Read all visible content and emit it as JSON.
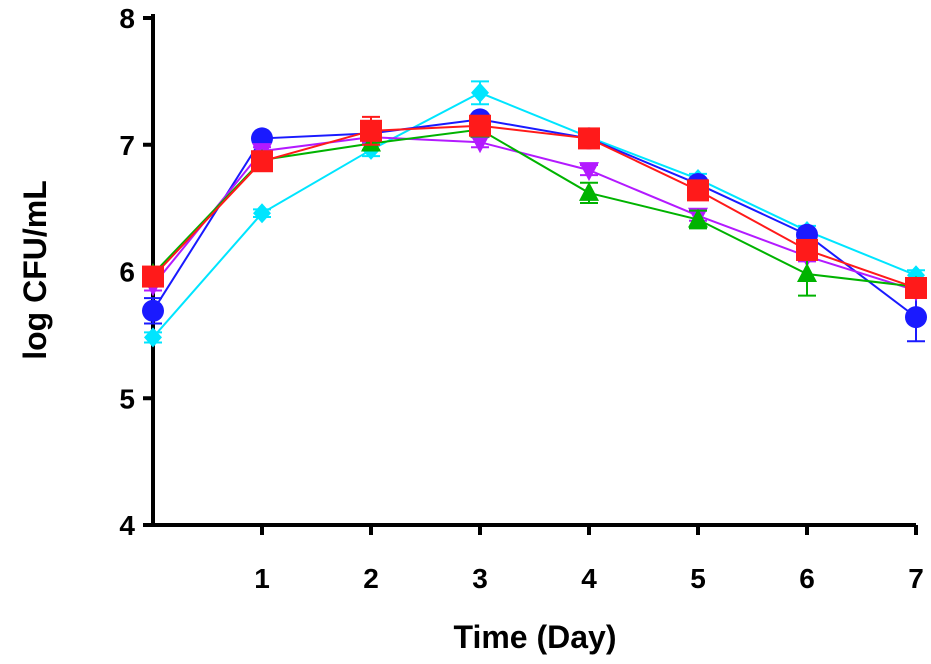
{
  "chart_data": {
    "type": "line",
    "title": "",
    "xlabel": "Time (Day)",
    "ylabel": "log CFU/mL",
    "xlim": [
      0,
      7
    ],
    "ylim": [
      4,
      8
    ],
    "x_ticks": [
      1,
      2,
      3,
      4,
      5,
      6,
      7
    ],
    "y_ticks": [
      4,
      5,
      6,
      7,
      8
    ],
    "grid": false,
    "legend": "none",
    "x": [
      0,
      1,
      2,
      3,
      4,
      5,
      6,
      7
    ],
    "series": [
      {
        "color": "#00e5ff",
        "marker": "diamond",
        "values": [
          5.48,
          6.46,
          6.96,
          7.41,
          7.06,
          6.73,
          6.32,
          5.97
        ],
        "errors": [
          0.04,
          0.03,
          0.05,
          0.09,
          0.04,
          0.04,
          0.04,
          0.04
        ]
      },
      {
        "color": "#1a1aff",
        "marker": "circle",
        "values": [
          5.69,
          7.05,
          7.09,
          7.2,
          7.05,
          6.69,
          6.29,
          5.64
        ],
        "errors": [
          0.1,
          0.03,
          0.04,
          0.04,
          0.04,
          0.04,
          0.04,
          0.19
        ]
      },
      {
        "color": "#b31aff",
        "marker": "triangle-down",
        "values": [
          5.89,
          6.95,
          7.06,
          7.02,
          6.8,
          6.44,
          6.12,
          5.85
        ],
        "errors": [
          0.04,
          0.03,
          0.04,
          0.04,
          0.04,
          0.04,
          0.04,
          0.04
        ]
      },
      {
        "color": "#00b300",
        "marker": "triangle-up",
        "values": [
          5.98,
          6.88,
          7.01,
          7.12,
          6.62,
          6.41,
          5.98,
          5.88
        ],
        "errors": [
          0.04,
          0.04,
          0.05,
          0.05,
          0.08,
          0.07,
          0.17,
          0.05
        ]
      },
      {
        "color": "#ff1a1a",
        "marker": "square",
        "values": [
          5.96,
          6.87,
          7.11,
          7.15,
          7.05,
          6.64,
          6.17,
          5.87
        ],
        "errors": [
          0.04,
          0.04,
          0.11,
          0.06,
          0.04,
          0.05,
          0.07,
          0.04
        ]
      }
    ]
  }
}
